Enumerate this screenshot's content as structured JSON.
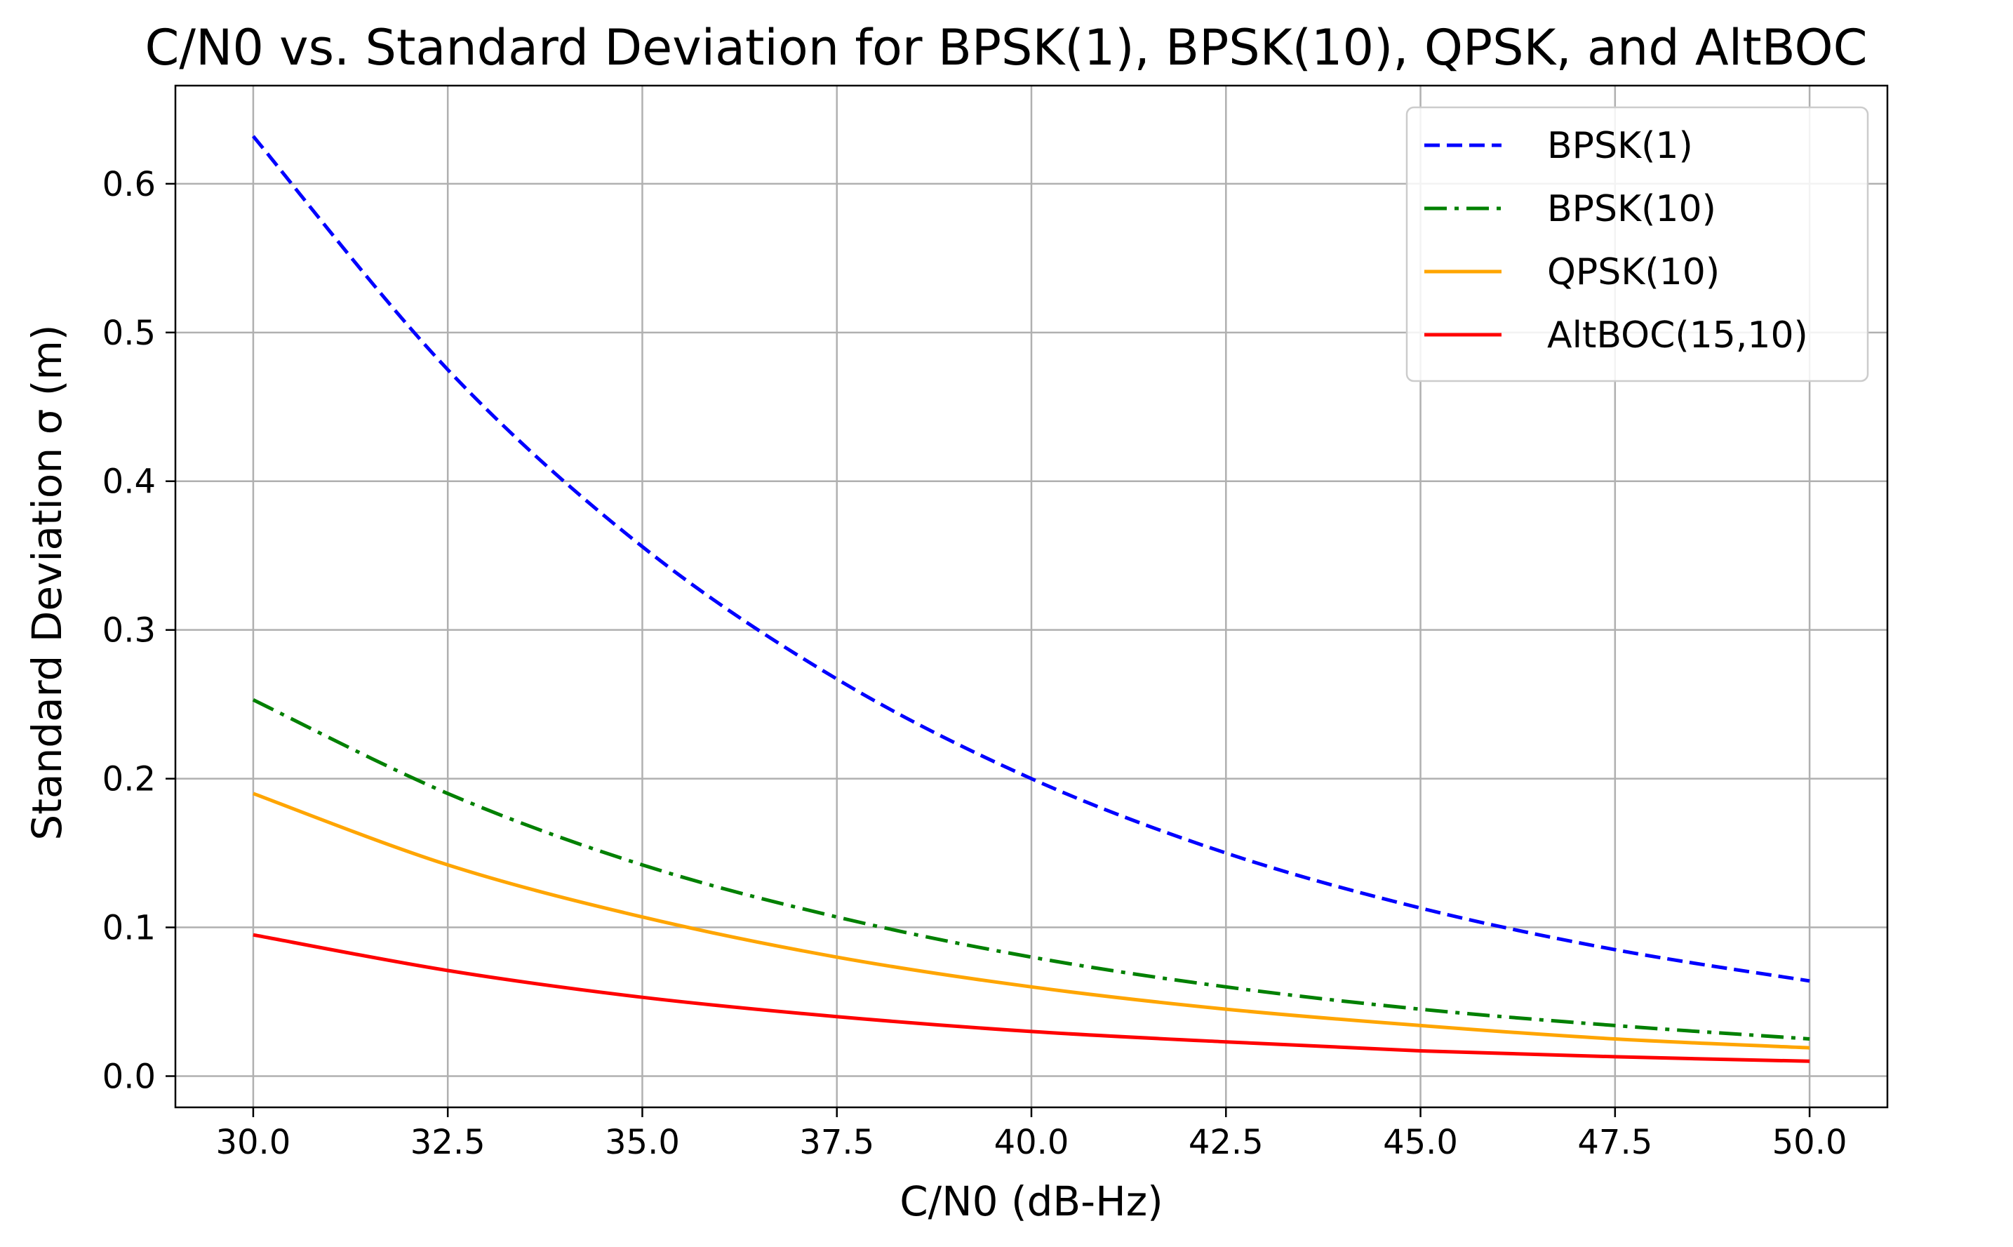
{
  "chart_data": {
    "type": "line",
    "title": "C/N0 vs. Standard Deviation for BPSK(1), BPSK(10), QPSK, and AltBOC",
    "xlabel": "C/N0 (dB-Hz)",
    "ylabel": "Standard Deviation σ (m)",
    "xlim": [
      29.0,
      51.0
    ],
    "ylim": [
      -0.021,
      0.666
    ],
    "xticks": [
      30.0,
      32.5,
      35.0,
      37.5,
      40.0,
      42.5,
      45.0,
      47.5,
      50.0
    ],
    "xtick_labels": [
      "30.0",
      "32.5",
      "35.0",
      "37.5",
      "40.0",
      "42.5",
      "45.0",
      "47.5",
      "50.0"
    ],
    "yticks": [
      0.0,
      0.1,
      0.2,
      0.3,
      0.4,
      0.5,
      0.6
    ],
    "ytick_labels": [
      "0.0",
      "0.1",
      "0.2",
      "0.3",
      "0.4",
      "0.5",
      "0.6"
    ],
    "grid": true,
    "legend_position": "top-right",
    "x": [
      30.0,
      32.5,
      35.0,
      37.5,
      40.0,
      42.5,
      45.0,
      47.5,
      50.0
    ],
    "series": [
      {
        "name": "BPSK(1)",
        "color": "#0000ff",
        "style": "dashed",
        "values": [
          0.632,
          0.475,
          0.356,
          0.267,
          0.2,
          0.15,
          0.113,
          0.085,
          0.064
        ]
      },
      {
        "name": "BPSK(10)",
        "color": "#008000",
        "style": "dashdot",
        "values": [
          0.253,
          0.19,
          0.142,
          0.107,
          0.08,
          0.06,
          0.045,
          0.034,
          0.025
        ]
      },
      {
        "name": "QPSK(10)",
        "color": "#ffa500",
        "style": "solid",
        "values": [
          0.19,
          0.142,
          0.107,
          0.08,
          0.06,
          0.045,
          0.034,
          0.025,
          0.019
        ]
      },
      {
        "name": "AltBOC(15,10)",
        "color": "#ff0000",
        "style": "solid",
        "values": [
          0.095,
          0.071,
          0.053,
          0.04,
          0.03,
          0.023,
          0.017,
          0.013,
          0.01
        ]
      }
    ]
  }
}
